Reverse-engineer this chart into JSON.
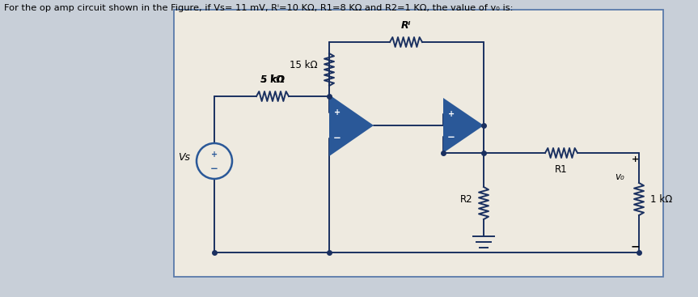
{
  "title": "For the op amp circuit shown in the Figure, if Vs= 11 mV, Rⁱ=10 KΩ, R1=8 KΩ and R2=1 KΩ, the value of v₀ is:",
  "bg_outer": "#c8cfd8",
  "bg_inner": "#eeeae0",
  "border_color": "#5a7aaa",
  "wire_color": "#1a3060",
  "opamp_fill": "#2a5898",
  "source_color": "#2a5898",
  "label_5k": "5 kΩ",
  "label_15k": "15 kΩ",
  "label_Rf": "Rⁱ",
  "label_R1": "R1",
  "label_R2": "R2",
  "label_Vs": "Vs",
  "label_vo": "v₀",
  "label_1k": "1 kΩ",
  "lw": 1.4,
  "res_amp": 6,
  "res_half": 20,
  "res_n": 6
}
